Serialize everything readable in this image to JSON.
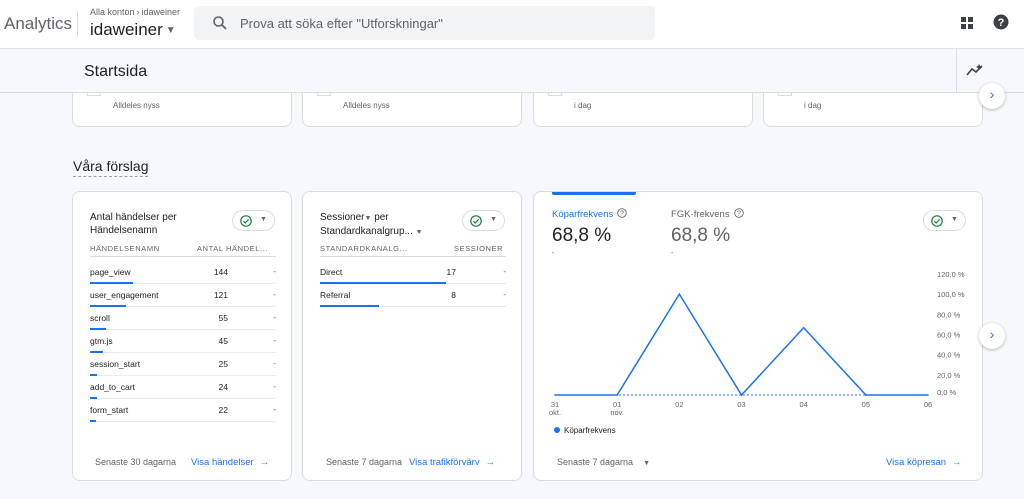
{
  "app": {
    "brand": "Analytics",
    "breadcrumb": {
      "root": "Alla konton",
      "child": "idaweiner"
    },
    "account": "idaweiner"
  },
  "search": {
    "placeholder": "Prova att söka efter \"Utforskningar\""
  },
  "page": {
    "title": "Startsida"
  },
  "top_cards": [
    {
      "time": "Alldeles nyss"
    },
    {
      "time": "Alldeles nyss"
    },
    {
      "time": "i dag"
    },
    {
      "time": "i dag"
    }
  ],
  "suggestions": {
    "title": "Våra förslag"
  },
  "card_events": {
    "title_line1": "Antal händelser per",
    "title_line2": "Händelsenamn",
    "col_name": "HÄNDELSENAMN",
    "col_value": "ANTAL HÄNDEL...",
    "rows": [
      {
        "name": "page_view",
        "value": "144",
        "dash": "-",
        "share": 1.0
      },
      {
        "name": "user_engagement",
        "value": "121",
        "dash": "-",
        "share": 0.84
      },
      {
        "name": "scroll",
        "value": "55",
        "dash": "-",
        "share": 0.38
      },
      {
        "name": "gtm.js",
        "value": "45",
        "dash": "-",
        "share": 0.31
      },
      {
        "name": "session_start",
        "value": "25",
        "dash": "-",
        "share": 0.17
      },
      {
        "name": "add_to_cart",
        "value": "24",
        "dash": "-",
        "share": 0.17
      },
      {
        "name": "form_start",
        "value": "22",
        "dash": "-",
        "share": 0.15
      }
    ],
    "period": "Senaste 30 dagarna",
    "link": "Visa händelser"
  },
  "card_sessions": {
    "title_line1": "Sessioner",
    "title_per": "per",
    "title_line2": "Standardkanalgrup...",
    "col_name": "STANDARDKANALG...",
    "col_value": "SESSIONER",
    "rows": [
      {
        "name": "Direct",
        "value": "17",
        "dash": "-",
        "share": 1.0
      },
      {
        "name": "Referral",
        "value": "8",
        "dash": "-",
        "share": 0.47
      }
    ],
    "period": "Senaste 7 dagarna",
    "link": "Visa trafikförvärv"
  },
  "card_conversion": {
    "metric1": {
      "label": "Köparfrekvens",
      "value": "68,8 %",
      "sub": "-"
    },
    "metric2": {
      "label": "FGK-frekvens",
      "value": "68,8 %",
      "sub": "-"
    },
    "period": "Senaste 7 dagarna",
    "link": "Visa köpresan"
  },
  "chart_data": {
    "type": "line",
    "x": [
      "31 okt.",
      "01 nov.",
      "02",
      "03",
      "04",
      "05",
      "06"
    ],
    "x_labels": [
      [
        "31",
        "okt."
      ],
      [
        "01",
        "nov."
      ],
      [
        "02"
      ],
      [
        "03"
      ],
      [
        "04"
      ],
      [
        "05"
      ],
      [
        "06"
      ]
    ],
    "series": [
      {
        "name": "Köparfrekvens",
        "values": [
          0,
          0,
          100,
          0,
          66.7,
          0,
          0
        ],
        "color": "#1a73e8"
      }
    ],
    "yticks": [
      "0,0 %",
      "20,0 %",
      "40,0 %",
      "60,0 %",
      "80,0 %",
      "100,0 %",
      "120,0 %"
    ],
    "ylim": [
      0,
      120
    ],
    "legend": "bottom-left"
  },
  "colors": {
    "accent": "#1a73e8",
    "success": "#188038"
  }
}
